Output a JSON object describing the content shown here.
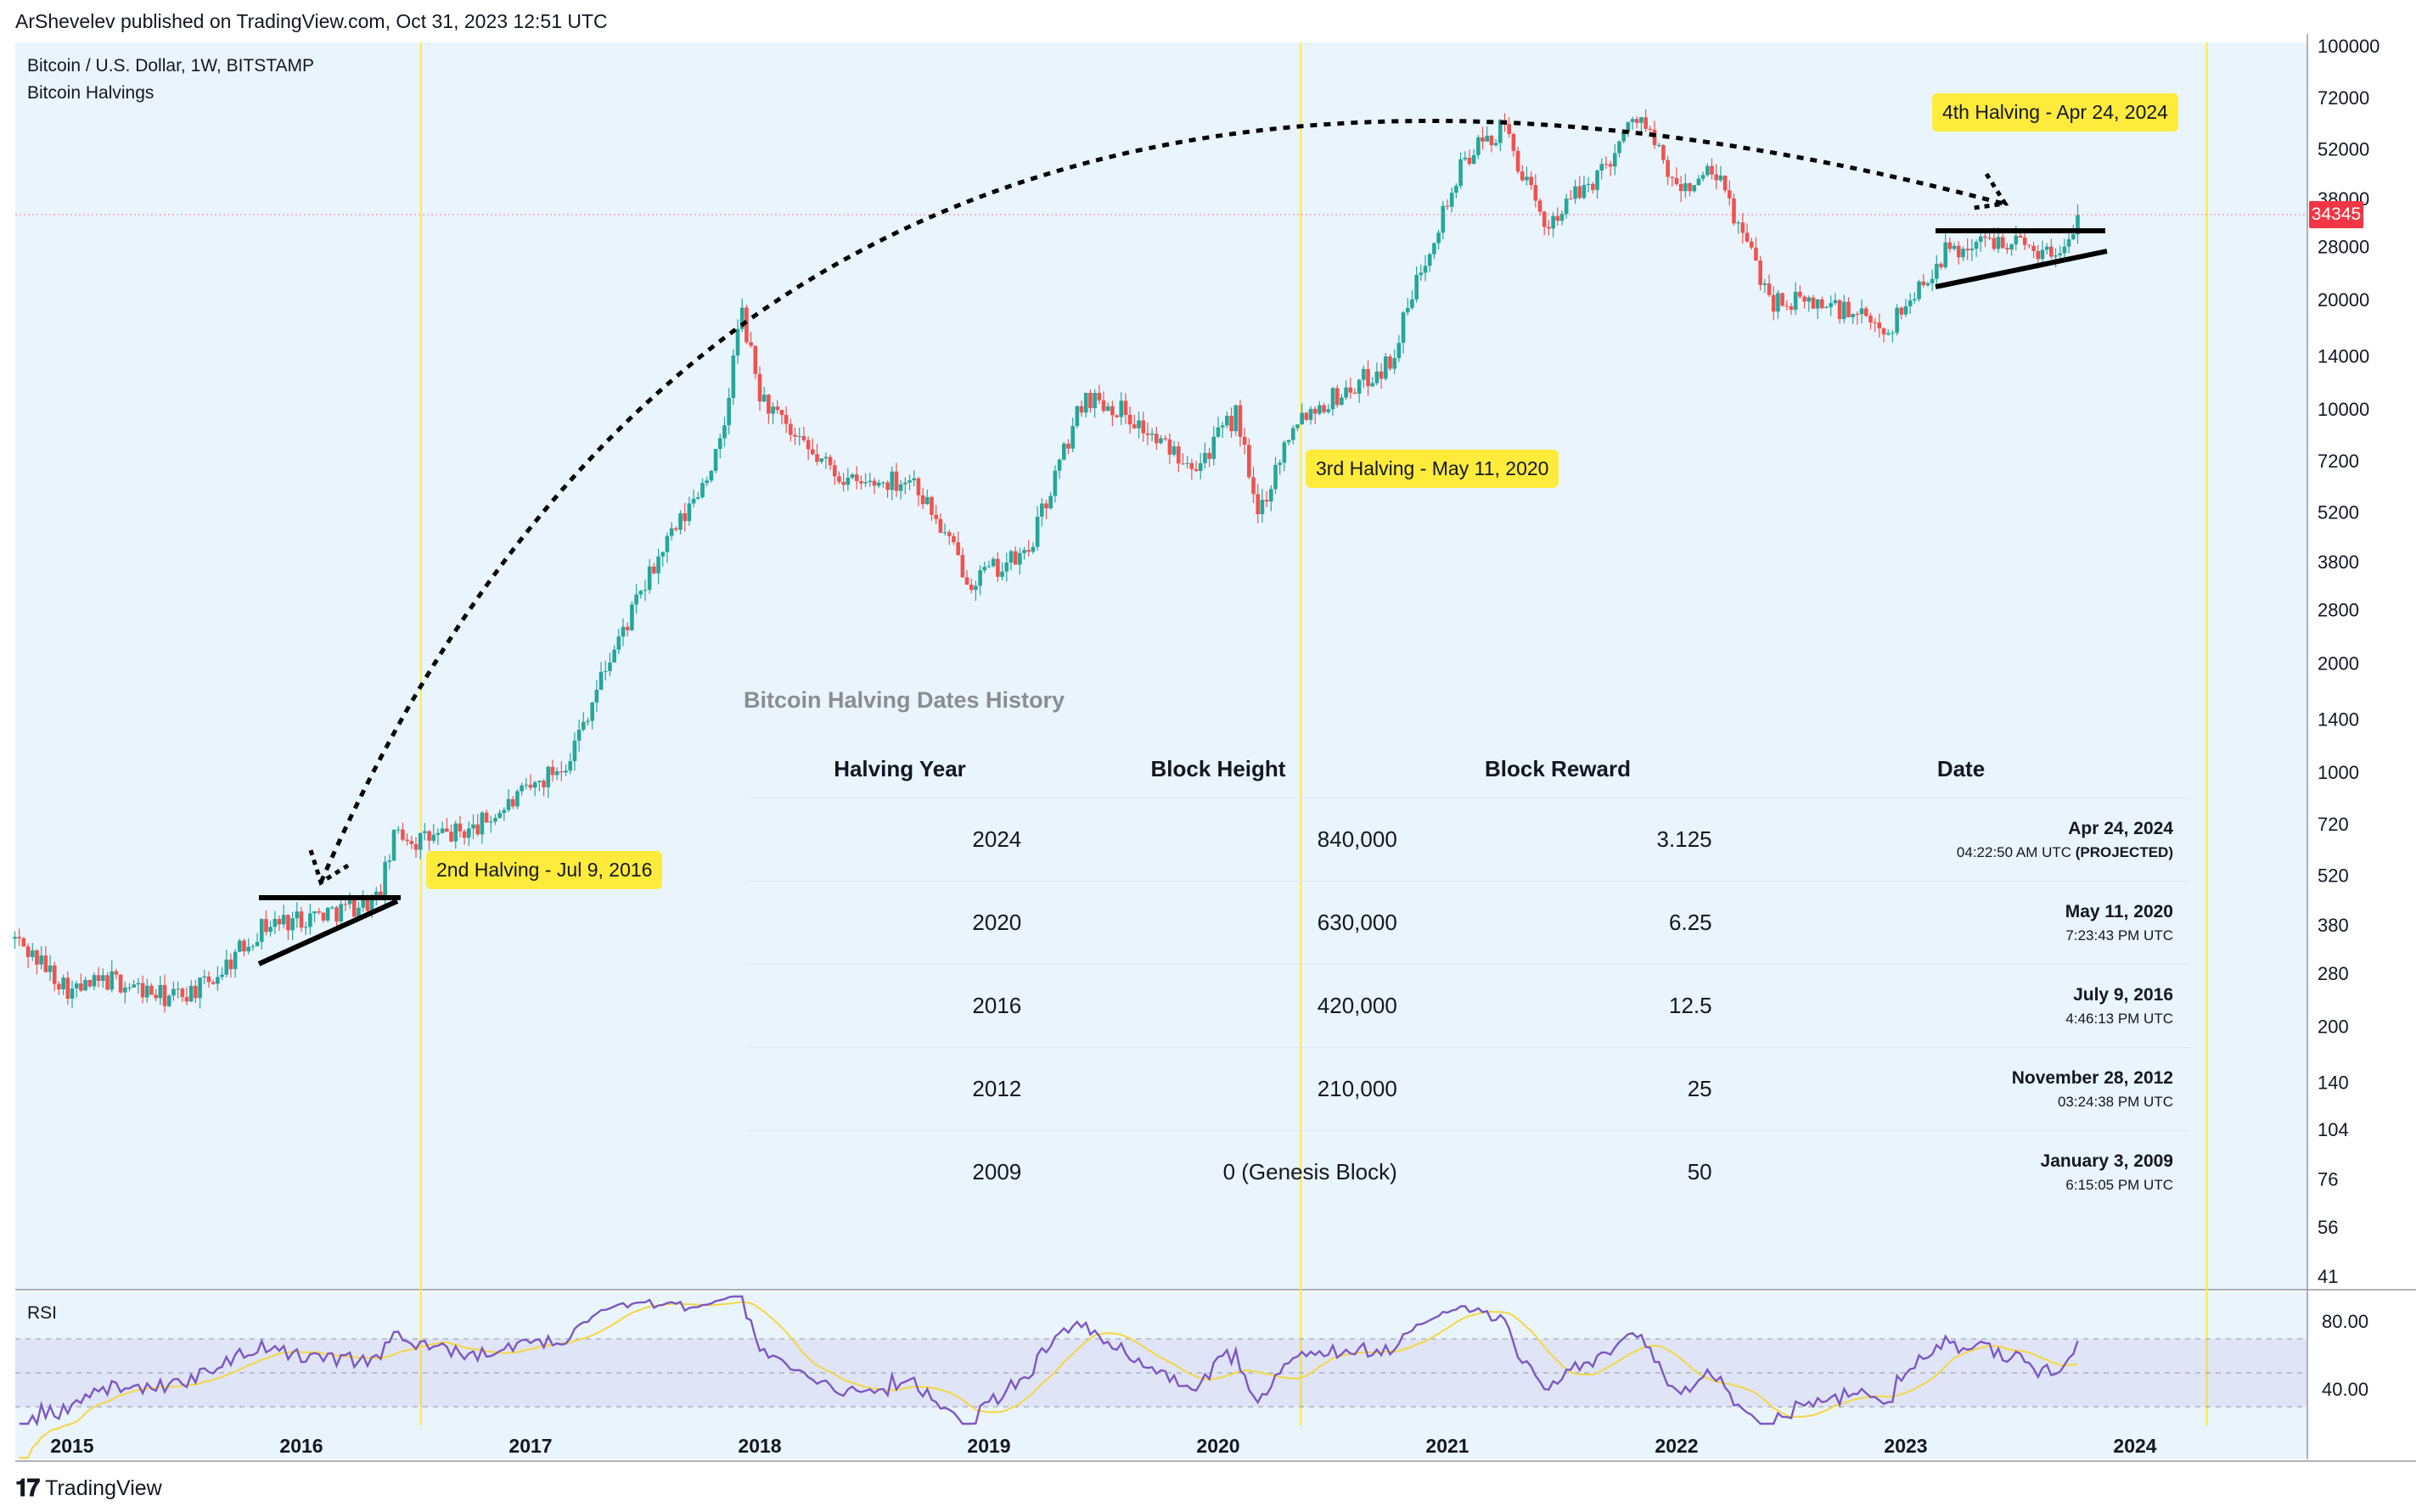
{
  "header": {
    "published": "ArShevelev published on TradingView.com, Oct 31, 2023 12:51 UTC"
  },
  "legend": {
    "symbol": "Bitcoin / U.S. Dollar, 1W, BITSTAMP",
    "indicator": "Bitcoin Halvings"
  },
  "halving_labels": {
    "second": "2nd Halving - Jul 9, 2016",
    "third": "3rd Halving - May 11, 2020",
    "fourth": "4th Halving - Apr 24, 2024"
  },
  "table": {
    "title": "Bitcoin Halving Dates History",
    "headers": [
      "Halving Year",
      "Block Height",
      "Block Reward",
      "Date"
    ],
    "rows": [
      {
        "year": "2024",
        "height": "840,000",
        "reward": "3.125",
        "date": "Apr 24, 2024",
        "time": "04:22:50 AM UTC",
        "note": "(PROJECTED)"
      },
      {
        "year": "2020",
        "height": "630,000",
        "reward": "6.25",
        "date": "May 11, 2020",
        "time": "7:23:43 PM UTC",
        "note": ""
      },
      {
        "year": "2016",
        "height": "420,000",
        "reward": "12.5",
        "date": "July 9, 2016",
        "time": "4:46:13 PM UTC",
        "note": ""
      },
      {
        "year": "2012",
        "height": "210,000",
        "reward": "25",
        "date": "November 28, 2012",
        "time": "03:24:38 PM UTC",
        "note": ""
      },
      {
        "year": "2009",
        "height": "0 (Genesis Block)",
        "reward": "50",
        "date": "January 3, 2009",
        "time": "6:15:05 PM UTC",
        "note": ""
      }
    ]
  },
  "price_tag": "34345",
  "rsi": {
    "label": "RSI",
    "ticks": [
      "80.00",
      "40.00"
    ]
  },
  "footer": {
    "brand": "TradingView"
  },
  "colors": {
    "background": "#eaf4fd",
    "up": "#26a69a",
    "down": "#ef5350",
    "halving_line": "#ffeb3b",
    "rsi_line": "#7e57c2",
    "rsi_ma": "#f5d742",
    "price_tag": "#f23645"
  },
  "chart_data": {
    "type": "candlestick",
    "title": "Bitcoin / U.S. Dollar, 1W, BITSTAMP",
    "y_scale": "log",
    "y_ticks": [
      41,
      56,
      76,
      104,
      140,
      200,
      280,
      380,
      520,
      720,
      1000,
      1400,
      2000,
      2800,
      3800,
      5200,
      7200,
      10000,
      14000,
      20000,
      28000,
      38000,
      52000,
      72000,
      100000
    ],
    "x_ticks": [
      "2015",
      "2016",
      "2017",
      "2018",
      "2019",
      "2020",
      "2021",
      "2022",
      "2023",
      "2024"
    ],
    "x_range": [
      "2014-10",
      "2024-12"
    ],
    "price_path": [
      [
        "2014-10",
        350
      ],
      [
        "2015-01",
        250
      ],
      [
        "2015-03",
        270
      ],
      [
        "2015-06",
        240
      ],
      [
        "2015-08",
        260
      ],
      [
        "2015-11",
        380
      ],
      [
        "2016-01",
        400
      ],
      [
        "2016-03",
        420
      ],
      [
        "2016-05",
        450
      ],
      [
        "2016-06",
        700
      ],
      [
        "2016-07",
        650
      ],
      [
        "2016-10",
        700
      ],
      [
        "2017-01",
        900
      ],
      [
        "2017-03",
        1100
      ],
      [
        "2017-05",
        2000
      ],
      [
        "2017-08",
        4200
      ],
      [
        "2017-09",
        5000
      ],
      [
        "2017-11",
        8000
      ],
      [
        "2017-12",
        19000
      ],
      [
        "2018-01",
        11000
      ],
      [
        "2018-03",
        8000
      ],
      [
        "2018-06",
        6200
      ],
      [
        "2018-09",
        6500
      ],
      [
        "2018-12",
        3400
      ],
      [
        "2019-03",
        4000
      ],
      [
        "2019-06",
        11000
      ],
      [
        "2019-08",
        10000
      ],
      [
        "2019-10",
        8000
      ],
      [
        "2019-12",
        7200
      ],
      [
        "2020-02",
        9800
      ],
      [
        "2020-03",
        5000
      ],
      [
        "2020-05",
        9500
      ],
      [
        "2020-08",
        11500
      ],
      [
        "2020-10",
        13500
      ],
      [
        "2020-12",
        28000
      ],
      [
        "2021-02",
        50000
      ],
      [
        "2021-04",
        60000
      ],
      [
        "2021-06",
        32000
      ],
      [
        "2021-09",
        45000
      ],
      [
        "2021-11",
        66000
      ],
      [
        "2022-01",
        40000
      ],
      [
        "2022-03",
        45000
      ],
      [
        "2022-06",
        20000
      ],
      [
        "2022-09",
        19500
      ],
      [
        "2022-12",
        16500
      ],
      [
        "2023-03",
        27000
      ],
      [
        "2023-06",
        30000
      ],
      [
        "2023-09",
        26500
      ],
      [
        "2023-10",
        34345
      ]
    ],
    "halvings": [
      "2016-07-09",
      "2020-05-11",
      "2024-04-24"
    ],
    "last_price": 34345,
    "rsi_range": [
      20,
      95
    ],
    "rsi_levels": [
      70,
      30
    ],
    "rsi_tick_labels": [
      80,
      40
    ]
  }
}
